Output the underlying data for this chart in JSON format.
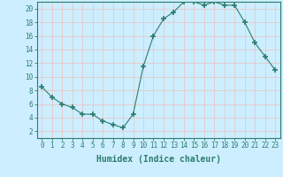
{
  "x": [
    0,
    1,
    2,
    3,
    4,
    5,
    6,
    7,
    8,
    9,
    10,
    11,
    12,
    13,
    14,
    15,
    16,
    17,
    18,
    19,
    20,
    21,
    22,
    23
  ],
  "y": [
    8.5,
    7.0,
    6.0,
    5.5,
    4.5,
    4.5,
    3.5,
    3.0,
    2.5,
    4.5,
    11.5,
    16.0,
    18.5,
    19.5,
    21.0,
    21.0,
    20.5,
    21.0,
    20.5,
    20.5,
    18.0,
    15.0,
    13.0,
    11.0
  ],
  "line_color": "#2d7d6e",
  "marker": "+",
  "marker_size": 4,
  "marker_lw": 1.2,
  "background_color": "#cceeff",
  "grid_color": "#e8c8c8",
  "xlabel": "Humidex (Indice chaleur)",
  "xlim": [
    -0.5,
    23.5
  ],
  "ylim": [
    1,
    21
  ],
  "yticks": [
    2,
    4,
    6,
    8,
    10,
    12,
    14,
    16,
    18,
    20
  ],
  "xticks": [
    0,
    1,
    2,
    3,
    4,
    5,
    6,
    7,
    8,
    9,
    10,
    11,
    12,
    13,
    14,
    15,
    16,
    17,
    18,
    19,
    20,
    21,
    22,
    23
  ],
  "tick_color": "#2d7d6e",
  "axis_color": "#2d7d6e",
  "label_fontsize": 7,
  "tick_fontsize": 5.5
}
